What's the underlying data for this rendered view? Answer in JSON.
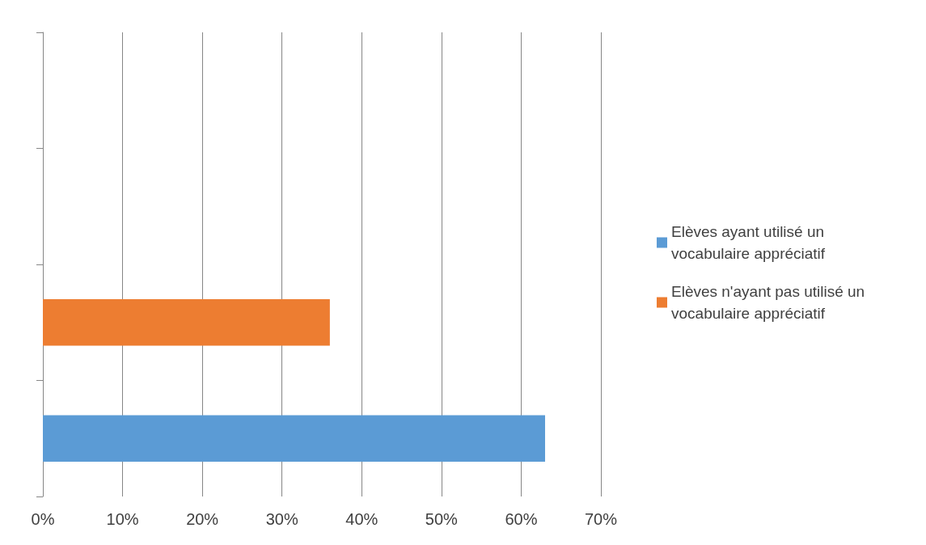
{
  "chart_data": {
    "type": "bar",
    "orientation": "horizontal",
    "categories": [
      null,
      null,
      null,
      null
    ],
    "series": [
      {
        "name": "Elèves ayant utilisé un vocabulaire appréciatif",
        "color": "#5b9bd5",
        "values": [
          null,
          null,
          null,
          63
        ]
      },
      {
        "name": "Elèves n'ayant pas utilisé un vocabulaire appréciatif",
        "color": "#ed7d31",
        "values": [
          null,
          null,
          36,
          null
        ]
      }
    ],
    "xlim": [
      0,
      70
    ],
    "xticks": [
      {
        "value": 0,
        "label": "0%"
      },
      {
        "value": 10,
        "label": "10%"
      },
      {
        "value": 20,
        "label": "20%"
      },
      {
        "value": 30,
        "label": "30%"
      },
      {
        "value": 40,
        "label": "40%"
      },
      {
        "value": 50,
        "label": "50%"
      },
      {
        "value": 60,
        "label": "60%"
      },
      {
        "value": 70,
        "label": "70%"
      }
    ],
    "grid": "x",
    "legend": "right"
  }
}
